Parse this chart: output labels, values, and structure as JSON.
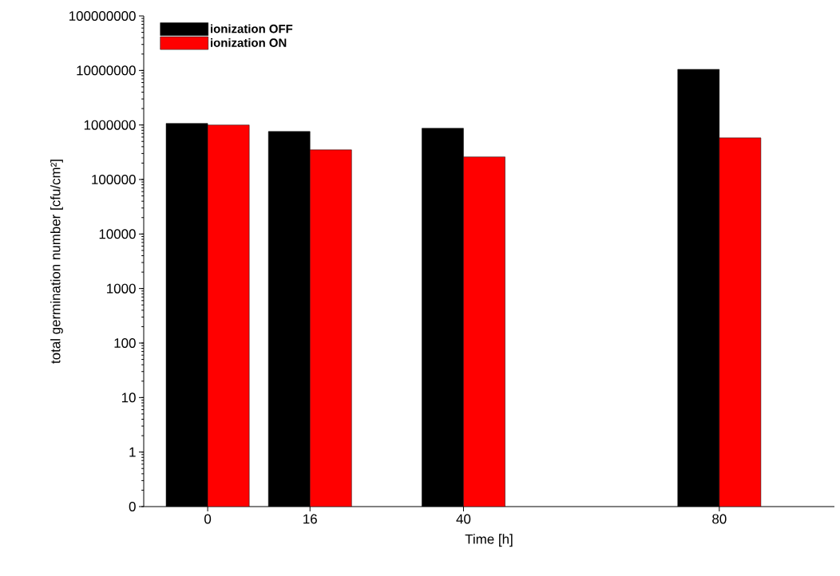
{
  "chart_data": {
    "type": "bar",
    "xlabel": "Time [h]",
    "ylabel": "total germination number [cfu/cm²]",
    "x": [
      0,
      16,
      40,
      80
    ],
    "series": [
      {
        "name": "ionization OFF",
        "color": "#000000",
        "values": [
          1070000,
          760000,
          870000,
          10500000
        ]
      },
      {
        "name": "ionization ON",
        "color": "#ff0000",
        "values": [
          1000000,
          350000,
          260000,
          580000
        ]
      }
    ],
    "log": "y",
    "ylim": [
      0.1,
      100000000
    ],
    "yticks": [
      {
        "value": 0.1,
        "label": "0"
      },
      1,
      10,
      100,
      1000,
      10000,
      100000,
      1000000,
      10000000,
      100000000
    ],
    "xlim": [
      -10,
      98
    ],
    "xticks": [
      0,
      16,
      40,
      80
    ],
    "legend": "top left",
    "grid": false
  }
}
